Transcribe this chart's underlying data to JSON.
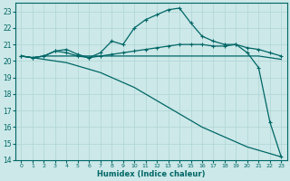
{
  "xlabel": "Humidex (Indice chaleur)",
  "bg_color": "#cce8e8",
  "grid_color": "#b0d4d4",
  "line_color": "#006666",
  "xlim": [
    -0.5,
    23.5
  ],
  "ylim": [
    14,
    23.5
  ],
  "yticks": [
    14,
    15,
    16,
    17,
    18,
    19,
    20,
    21,
    22,
    23
  ],
  "xticks": [
    0,
    1,
    2,
    3,
    4,
    5,
    6,
    7,
    8,
    9,
    10,
    11,
    12,
    13,
    14,
    15,
    16,
    17,
    18,
    19,
    20,
    21,
    22,
    23
  ],
  "lines": [
    {
      "x": [
        0,
        1,
        2,
        3,
        4,
        5,
        6,
        7,
        8,
        9,
        10,
        11,
        12,
        13,
        14,
        15,
        16,
        17,
        18,
        19,
        20,
        21,
        22,
        23
      ],
      "y": [
        20.3,
        20.2,
        20.3,
        20.3,
        20.3,
        20.3,
        20.3,
        20.3,
        20.3,
        20.3,
        20.3,
        20.3,
        20.3,
        20.3,
        20.3,
        20.3,
        20.3,
        20.3,
        20.3,
        20.3,
        20.3,
        20.3,
        20.2,
        20.1
      ],
      "marker": false,
      "lw": 0.9
    },
    {
      "x": [
        0,
        1,
        2,
        3,
        4,
        5,
        6,
        7,
        8,
        9,
        10,
        11,
        12,
        13,
        14,
        15,
        16,
        17,
        18,
        19,
        20,
        21,
        22,
        23
      ],
      "y": [
        20.3,
        20.2,
        20.3,
        20.6,
        20.7,
        20.4,
        20.2,
        20.5,
        21.2,
        21.0,
        22.0,
        22.5,
        22.8,
        23.1,
        23.2,
        22.3,
        21.5,
        21.2,
        21.0,
        21.0,
        20.5,
        19.6,
        16.3,
        14.2
      ],
      "marker": true,
      "lw": 0.9
    },
    {
      "x": [
        0,
        1,
        2,
        3,
        4,
        5,
        6,
        7,
        8,
        9,
        10,
        11,
        12,
        13,
        14,
        15,
        16,
        17,
        18,
        19,
        20,
        21,
        22,
        23
      ],
      "y": [
        20.3,
        20.2,
        20.3,
        20.6,
        20.5,
        20.3,
        20.2,
        20.3,
        20.4,
        20.5,
        20.6,
        20.7,
        20.8,
        20.9,
        21.0,
        21.0,
        21.0,
        20.9,
        20.9,
        21.0,
        20.8,
        20.7,
        20.5,
        20.3
      ],
      "marker": true,
      "lw": 0.9
    },
    {
      "x": [
        0,
        1,
        2,
        3,
        4,
        5,
        6,
        7,
        8,
        9,
        10,
        11,
        12,
        13,
        14,
        15,
        16,
        17,
        18,
        19,
        20,
        21,
        22,
        23
      ],
      "y": [
        20.3,
        20.2,
        20.1,
        20.0,
        19.9,
        19.7,
        19.5,
        19.3,
        19.0,
        18.7,
        18.4,
        18.0,
        17.6,
        17.2,
        16.8,
        16.4,
        16.0,
        15.7,
        15.4,
        15.1,
        14.8,
        14.6,
        14.4,
        14.2
      ],
      "marker": false,
      "lw": 0.9
    }
  ]
}
